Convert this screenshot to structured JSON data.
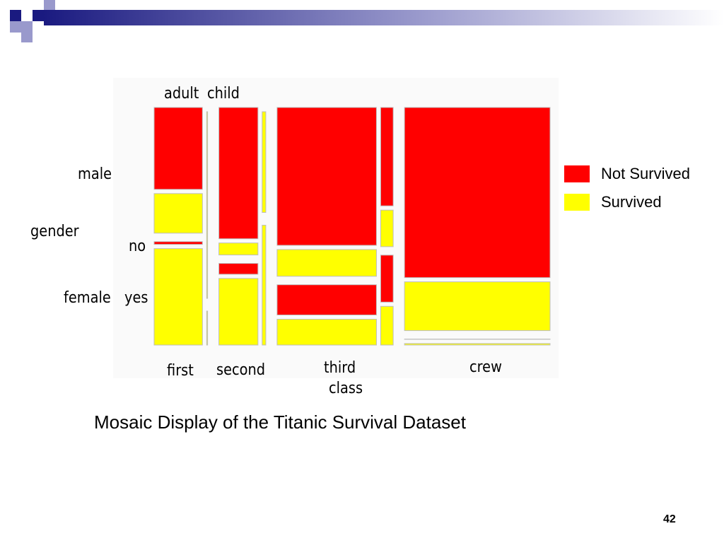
{
  "chart_data": {
    "type": "mosaic",
    "title": "",
    "caption": "Mosaic Display of the Titanic Survival Dataset",
    "axes": {
      "class_label": "class",
      "class_levels": [
        "first",
        "second",
        "third",
        "crew"
      ],
      "age_levels": [
        "adult",
        "child"
      ],
      "gender_label": "gender",
      "gender_levels": [
        "male",
        "female"
      ],
      "survived_levels": [
        "no",
        "yes"
      ]
    },
    "legend": [
      {
        "name": "Not Survived",
        "color": "#ff0000"
      },
      {
        "name": "Survived",
        "color": "#ffff00"
      }
    ],
    "legend_placement": "right",
    "grid": false,
    "series": [
      {
        "class": "first",
        "age": "adult",
        "sex": "male",
        "no": 118,
        "yes": 57
      },
      {
        "class": "first",
        "age": "adult",
        "sex": "female",
        "no": 4,
        "yes": 140
      },
      {
        "class": "first",
        "age": "child",
        "sex": "male",
        "no": 0,
        "yes": 5
      },
      {
        "class": "first",
        "age": "child",
        "sex": "female",
        "no": 0,
        "yes": 1
      },
      {
        "class": "second",
        "age": "adult",
        "sex": "male",
        "no": 154,
        "yes": 14
      },
      {
        "class": "second",
        "age": "adult",
        "sex": "female",
        "no": 13,
        "yes": 80
      },
      {
        "class": "second",
        "age": "child",
        "sex": "male",
        "no": 0,
        "yes": 11
      },
      {
        "class": "second",
        "age": "child",
        "sex": "female",
        "no": 0,
        "yes": 13
      },
      {
        "class": "third",
        "age": "adult",
        "sex": "male",
        "no": 387,
        "yes": 75
      },
      {
        "class": "third",
        "age": "adult",
        "sex": "female",
        "no": 89,
        "yes": 76
      },
      {
        "class": "third",
        "age": "child",
        "sex": "male",
        "no": 35,
        "yes": 13
      },
      {
        "class": "third",
        "age": "child",
        "sex": "female",
        "no": 17,
        "yes": 14
      },
      {
        "class": "crew",
        "age": "adult",
        "sex": "male",
        "no": 670,
        "yes": 192
      },
      {
        "class": "crew",
        "age": "adult",
        "sex": "female",
        "no": 3,
        "yes": 20
      },
      {
        "class": "crew",
        "age": "child",
        "sex": "male",
        "no": 0,
        "yes": 0
      },
      {
        "class": "crew",
        "age": "child",
        "sex": "female",
        "no": 0,
        "yes": 0
      }
    ]
  },
  "colors": {
    "not_survived": "#ff0000",
    "survived": "#ffff00",
    "header_dark": "#1a1a80",
    "header_light": "#9999cc"
  },
  "page_number": "42"
}
